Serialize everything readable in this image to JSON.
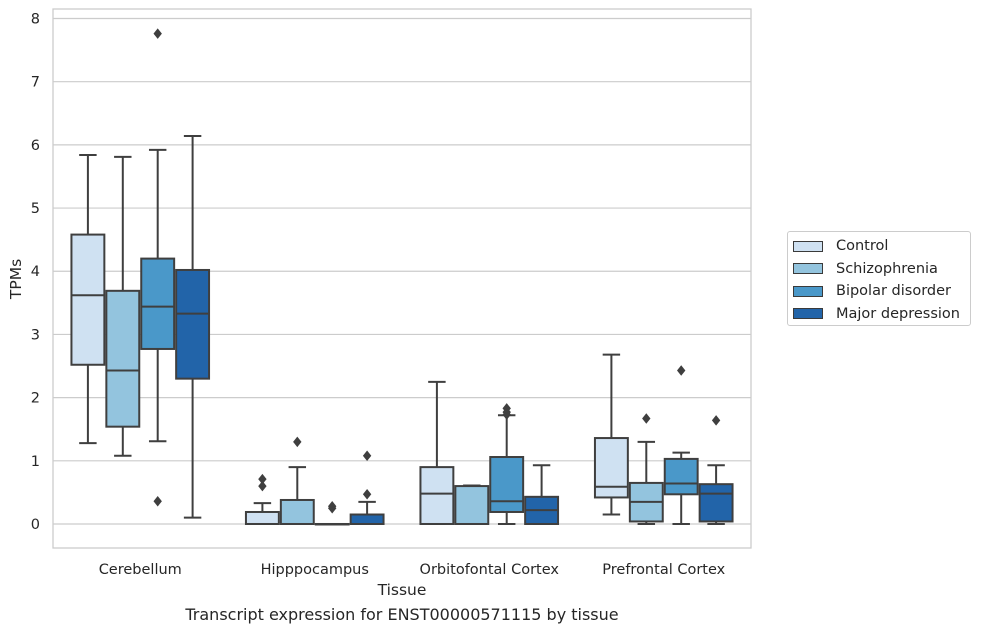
{
  "chart_data": {
    "type": "box",
    "xlabel": "Tissue",
    "ylabel": "TPMs",
    "caption": "Transcript expression for ENST00000571115 by tissue",
    "ylim": [
      -0.38,
      8.15
    ],
    "yticks": [
      0,
      1,
      2,
      3,
      4,
      5,
      6,
      7,
      8
    ],
    "grid": true,
    "legend_position": "right",
    "categories": [
      "Cerebellum",
      "Hipppocampus",
      "Orbitofontal Cortex",
      "Prefrontal Cortex"
    ],
    "series": [
      {
        "name": "Control",
        "color": "#cfe1f2",
        "boxes": [
          {
            "whislo": 1.28,
            "q1": 2.52,
            "med": 3.62,
            "q3": 4.58,
            "whishi": 5.84,
            "fliers": []
          },
          {
            "whislo": 0.0,
            "q1": 0.0,
            "med": 0.0,
            "q3": 0.19,
            "whishi": 0.33,
            "fliers": [
              0.6,
              0.71
            ]
          },
          {
            "whislo": 0.0,
            "q1": 0.0,
            "med": 0.48,
            "q3": 0.9,
            "whishi": 2.25,
            "fliers": []
          },
          {
            "whislo": 0.15,
            "q1": 0.42,
            "med": 0.59,
            "q3": 1.36,
            "whishi": 2.68,
            "fliers": []
          }
        ]
      },
      {
        "name": "Schizophrenia",
        "color": "#93c4de",
        "boxes": [
          {
            "whislo": 1.08,
            "q1": 1.54,
            "med": 2.43,
            "q3": 3.69,
            "whishi": 5.81,
            "fliers": []
          },
          {
            "whislo": 0.0,
            "q1": 0.0,
            "med": 0.0,
            "q3": 0.38,
            "whishi": 0.9,
            "fliers": [
              1.3
            ]
          },
          {
            "whislo": 0.0,
            "q1": 0.0,
            "med": 0.0,
            "q3": 0.6,
            "whishi": 0.61,
            "fliers": []
          },
          {
            "whislo": 0.0,
            "q1": 0.04,
            "med": 0.35,
            "q3": 0.65,
            "whishi": 1.3,
            "fliers": [
              1.67
            ]
          }
        ]
      },
      {
        "name": "Bipolar disorder",
        "color": "#4a98c9",
        "boxes": [
          {
            "whislo": 1.31,
            "q1": 2.77,
            "med": 3.44,
            "q3": 4.2,
            "whishi": 5.92,
            "fliers": [
              0.36,
              7.76
            ]
          },
          {
            "whislo": 0.0,
            "q1": 0.0,
            "med": 0.0,
            "q3": 0.0,
            "whishi": 0.0,
            "fliers": [
              0.25,
              0.28
            ]
          },
          {
            "whislo": 0.0,
            "q1": 0.19,
            "med": 0.36,
            "q3": 1.06,
            "whishi": 1.72,
            "fliers": [
              1.73,
              1.77,
              1.83
            ]
          },
          {
            "whislo": 0.0,
            "q1": 0.47,
            "med": 0.64,
            "q3": 1.03,
            "whishi": 1.13,
            "fliers": [
              2.43
            ]
          }
        ]
      },
      {
        "name": "Major depression",
        "color": "#2264a9",
        "boxes": [
          {
            "whislo": 0.1,
            "q1": 2.3,
            "med": 3.33,
            "q3": 4.02,
            "whishi": 6.14,
            "fliers": []
          },
          {
            "whislo": 0.0,
            "q1": 0.0,
            "med": 0.0,
            "q3": 0.15,
            "whishi": 0.35,
            "fliers": [
              0.47,
              1.08
            ]
          },
          {
            "whislo": 0.0,
            "q1": 0.0,
            "med": 0.22,
            "q3": 0.43,
            "whishi": 0.93,
            "fliers": []
          },
          {
            "whislo": 0.0,
            "q1": 0.04,
            "med": 0.48,
            "q3": 0.63,
            "whishi": 0.93,
            "fliers": [
              1.64
            ]
          }
        ]
      }
    ]
  }
}
